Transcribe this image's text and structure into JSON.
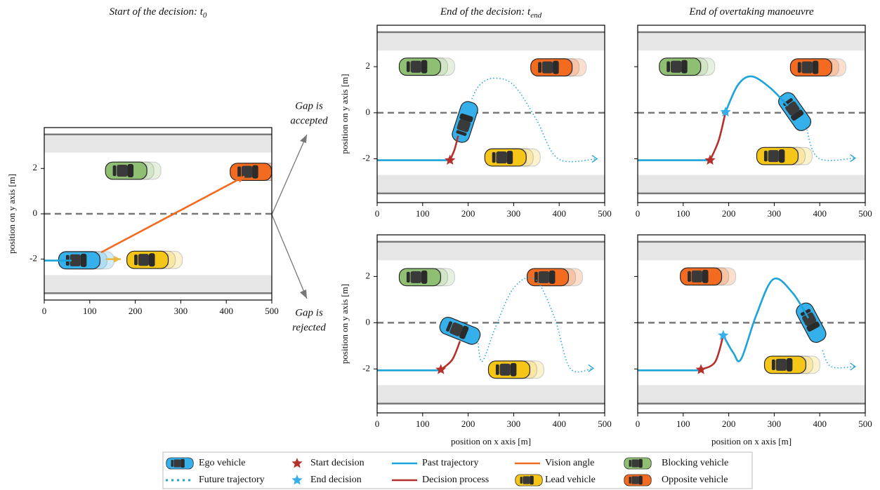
{
  "chart_data": [
    {
      "type": "line",
      "title": "Start of the decision: t",
      "title_subscript": "0",
      "ylabel": "position on y axis [m]",
      "xlim": [
        0,
        500
      ],
      "ylim": [
        -3.8,
        3.8
      ],
      "xticks": [
        0,
        100,
        200,
        300,
        400,
        500
      ],
      "yticks": [
        -2,
        0,
        2
      ],
      "ytick_labels": true,
      "road": {
        "center": 0,
        "edges": [
          -3.5,
          3.5
        ],
        "shoulders": [
          [
            -3.5,
            -2.7
          ],
          [
            2.7,
            3.5
          ]
        ]
      },
      "series": [
        {
          "color": "#1ca3d9",
          "style": "solid",
          "arrow": false,
          "x": [
            0,
            60
          ],
          "values": [
            -2.06,
            -2.06
          ]
        },
        {
          "color": "#f26b21",
          "style": "solid",
          "arrow": true,
          "x": [
            125,
            440
          ],
          "values": [
            -1.7,
            1.65
          ]
        },
        {
          "color": "#e8b84a",
          "style": "solid",
          "arrow": true,
          "x": [
            135,
            168
          ],
          "values": [
            -2.0,
            -2.0
          ]
        }
      ],
      "markers": [],
      "cars": [
        {
          "color": "#8fbf73",
          "x": 180,
          "y": 1.9,
          "angle": 0
        },
        {
          "color": "#f26b21",
          "x": 454,
          "y": 1.85,
          "angle": 0
        },
        {
          "color": "#f5c518",
          "x": 227,
          "y": -2.03,
          "angle": 0
        },
        {
          "color": "#35b0ea",
          "x": 77,
          "y": -2.05,
          "angle": 0
        }
      ]
    },
    {
      "type": "line",
      "title": "End of the decision: t",
      "title_subscript": "end",
      "ylabel": "position on y axis [m]",
      "xlim": [
        0,
        500
      ],
      "ylim": [
        -3.9,
        3.8
      ],
      "xticks": [
        0,
        100,
        200,
        300,
        400,
        500
      ],
      "yticks": [
        -2,
        0,
        2
      ],
      "ytick_labels": true,
      "road": {
        "center": 0,
        "edges": [
          -3.5,
          3.5
        ],
        "shoulders": [
          [
            -3.5,
            -2.7
          ],
          [
            2.7,
            3.5
          ]
        ]
      },
      "series": [
        {
          "color": "#1ca3d9",
          "style": "solid",
          "arrow": false,
          "x": [
            0,
            160
          ],
          "values": [
            -2.06,
            -2.06
          ]
        },
        {
          "color": "#b5302a",
          "style": "solid",
          "arrow": false,
          "x": [
            160,
            170,
            178
          ],
          "values": [
            -2.06,
            -1.6,
            -1.0
          ]
        },
        {
          "color": "#1ca3d9",
          "style": "dotted",
          "arrow": true,
          "x": [
            208,
            225,
            256,
            300,
            350,
            398,
            483
          ],
          "values": [
            0.6,
            1.2,
            1.5,
            1.2,
            -0.3,
            -2.0,
            -2.0
          ]
        }
      ],
      "markers": [
        {
          "color": "#b5302a",
          "x": 160,
          "y": -2.06
        }
      ],
      "cars": [
        {
          "color": "#8fbf73",
          "x": 94,
          "y": 2.0,
          "angle": 0
        },
        {
          "color": "#f26b21",
          "x": 383,
          "y": 1.97,
          "angle": 0
        },
        {
          "color": "#f5c518",
          "x": 282,
          "y": -1.94,
          "angle": 0
        },
        {
          "color": "#35b0ea",
          "x": 193,
          "y": -0.4,
          "angle": -72
        }
      ]
    },
    {
      "type": "line",
      "title": "End of overtaking manoeuvre",
      "xlim": [
        0,
        500
      ],
      "ylim": [
        -3.9,
        3.8
      ],
      "xticks": [
        0,
        100,
        200,
        300,
        400,
        500
      ],
      "yticks": [
        -2,
        0,
        2
      ],
      "ytick_labels": false,
      "road": {
        "center": 0,
        "edges": [
          -3.5,
          3.5
        ],
        "shoulders": [
          [
            -3.5,
            -2.7
          ],
          [
            2.7,
            3.5
          ]
        ]
      },
      "series": [
        {
          "color": "#1ca3d9",
          "style": "solid",
          "arrow": false,
          "x": [
            0,
            159
          ],
          "values": [
            -2.06,
            -2.06
          ]
        },
        {
          "color": "#b5302a",
          "style": "solid",
          "arrow": false,
          "x": [
            159,
            178,
            193
          ],
          "values": [
            -2.06,
            -1.2,
            0.03
          ]
        },
        {
          "color": "#1ca3d9",
          "style": "solid",
          "arrow": false,
          "x": [
            193,
            220,
            250,
            290,
            330
          ],
          "values": [
            0.03,
            1.2,
            1.58,
            1.1,
            0.3
          ]
        },
        {
          "color": "#1ca3d9",
          "style": "dotted",
          "arrow": true,
          "x": [
            370,
            397,
            478
          ],
          "values": [
            -0.6,
            -1.97,
            -1.97
          ]
        }
      ],
      "markers": [
        {
          "color": "#b5302a",
          "x": 159,
          "y": -2.06
        },
        {
          "color": "#35b0ea",
          "x": 193,
          "y": 0.03
        }
      ],
      "cars": [
        {
          "color": "#8fbf73",
          "x": 93,
          "y": 2.0,
          "angle": 0
        },
        {
          "color": "#f26b21",
          "x": 381,
          "y": 1.97,
          "angle": 0
        },
        {
          "color": "#f5c518",
          "x": 307,
          "y": -1.88,
          "angle": 0
        },
        {
          "color": "#35b0ea",
          "x": 345,
          "y": 0.05,
          "angle": 55
        }
      ]
    },
    {
      "type": "line",
      "ylabel": "position on y axis [m]",
      "xlabel": "position on x axis [m]",
      "xlim": [
        0,
        500
      ],
      "ylim": [
        -3.9,
        3.8
      ],
      "xticks": [
        0,
        100,
        200,
        300,
        400,
        500
      ],
      "yticks": [
        -2,
        0,
        2
      ],
      "ytick_labels": true,
      "road": {
        "center": 0,
        "edges": [
          -3.5,
          3.5
        ],
        "shoulders": [
          [
            -3.5,
            -2.7
          ],
          [
            2.7,
            3.5
          ]
        ]
      },
      "series": [
        {
          "color": "#1ca3d9",
          "style": "solid",
          "arrow": false,
          "x": [
            0,
            140
          ],
          "values": [
            -2.06,
            -2.06
          ]
        },
        {
          "color": "#b5302a",
          "style": "solid",
          "arrow": false,
          "x": [
            140,
            165,
            182
          ],
          "values": [
            -2.03,
            -1.6,
            -0.8
          ]
        },
        {
          "color": "#1ca3d9",
          "style": "dotted",
          "arrow": true,
          "x": [
            221,
            231,
            260,
            300,
            347,
            390,
            424,
            475
          ],
          "values": [
            -0.76,
            -1.67,
            -0.2,
            1.5,
            1.88,
            0.2,
            -1.97,
            -1.97
          ]
        }
      ],
      "markers": [
        {
          "color": "#b5302a",
          "x": 140,
          "y": -2.03
        }
      ],
      "cars": [
        {
          "color": "#8fbf73",
          "x": 94,
          "y": 1.97,
          "angle": 0
        },
        {
          "color": "#f26b21",
          "x": 375,
          "y": 1.97,
          "angle": 0
        },
        {
          "color": "#f5c518",
          "x": 290,
          "y": -2.03,
          "angle": 0
        },
        {
          "color": "#35b0ea",
          "x": 182,
          "y": -0.35,
          "angle": 22
        }
      ]
    },
    {
      "type": "line",
      "xlabel": "position on x axis [m]",
      "xlim": [
        0,
        500
      ],
      "ylim": [
        -3.9,
        3.8
      ],
      "xticks": [
        0,
        100,
        200,
        300,
        400,
        500
      ],
      "yticks": [
        -2,
        0,
        2
      ],
      "ytick_labels": false,
      "road": {
        "center": 0,
        "edges": [
          -3.5,
          3.5
        ],
        "shoulders": [
          [
            -3.5,
            -2.7
          ],
          [
            2.7,
            3.5
          ]
        ]
      },
      "series": [
        {
          "color": "#1ca3d9",
          "style": "solid",
          "arrow": false,
          "x": [
            0,
            139
          ],
          "values": [
            -2.06,
            -2.06
          ]
        },
        {
          "color": "#b5302a",
          "style": "solid",
          "arrow": false,
          "x": [
            139,
            170,
            188
          ],
          "values": [
            -2.03,
            -1.7,
            -0.55
          ]
        },
        {
          "color": "#1ca3d9",
          "style": "solid",
          "arrow": false,
          "x": [
            188,
            210,
            227,
            260,
            298,
            340,
            375
          ],
          "values": [
            -0.55,
            -1.3,
            -1.58,
            0.3,
            1.88,
            1.3,
            0.2
          ]
        },
        {
          "color": "#1ca3d9",
          "style": "dotted",
          "arrow": true,
          "x": [
            406,
            425,
            478
          ],
          "values": [
            -1.2,
            -1.9,
            -1.9
          ]
        }
      ],
      "markers": [
        {
          "color": "#b5302a",
          "x": 139,
          "y": -2.03
        },
        {
          "color": "#35b0ea",
          "x": 188,
          "y": -0.55
        }
      ],
      "cars": [
        {
          "color": "#f26b21",
          "x": 139,
          "y": 2.0,
          "angle": 0
        },
        {
          "color": "#f5c518",
          "x": 324,
          "y": -1.82,
          "angle": 0
        },
        {
          "color": "#35b0ea",
          "x": 381,
          "y": 0.0,
          "angle": 62
        }
      ]
    }
  ],
  "annotations": [
    [
      "Gap is",
      "accepted"
    ],
    [
      "Gap is",
      "rejected"
    ]
  ],
  "legend": [
    {
      "label": "Ego vehicle",
      "kind": "car",
      "color": "#35b0ea"
    },
    {
      "label": "Future trajectory",
      "kind": "line",
      "style": "dotted",
      "color": "#1ca3d9"
    },
    {
      "label": "Start decision",
      "kind": "star",
      "color": "#b5302a"
    },
    {
      "label": "End decision",
      "kind": "star",
      "color": "#35b0ea"
    },
    {
      "label": "Past trajectory",
      "kind": "line",
      "style": "solid",
      "color": "#1ca3d9"
    },
    {
      "label": "Decision process",
      "kind": "line",
      "style": "solid",
      "color": "#b5302a"
    },
    {
      "label": "Vision angle",
      "kind": "line",
      "style": "solid",
      "color": "#f26b21"
    },
    {
      "label": "Lead vehicle",
      "kind": "car",
      "color": "#f5c518"
    },
    {
      "label": "Blocking vehicle",
      "kind": "car",
      "color": "#8fbf73"
    },
    {
      "label": "Opposite vehicle",
      "kind": "car",
      "color": "#f26b21"
    }
  ]
}
